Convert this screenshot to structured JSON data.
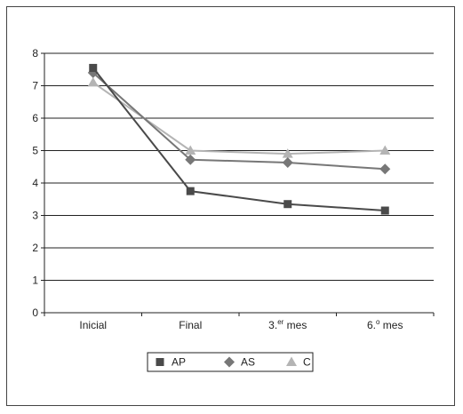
{
  "chart_data": {
    "type": "line",
    "title": "",
    "xlabel": "",
    "ylabel": "",
    "categories": [
      "Inicial",
      "Final",
      "3.er mes",
      "6.º mes"
    ],
    "category_labels": [
      {
        "base": "Inicial",
        "sup": "",
        "tail": ""
      },
      {
        "base": "Final",
        "sup": "",
        "tail": ""
      },
      {
        "base": "3.",
        "sup": "er",
        "tail": " mes"
      },
      {
        "base": "6.",
        "sup": "o",
        "tail": " mes"
      }
    ],
    "ylim": [
      0,
      8
    ],
    "yticks": [
      0,
      1,
      2,
      3,
      4,
      5,
      6,
      7,
      8
    ],
    "grid": true,
    "legend_position": "bottom",
    "series": [
      {
        "name": "AP",
        "marker": "square",
        "color": "#4a4a4a",
        "values": [
          7.55,
          3.75,
          3.35,
          3.15
        ]
      },
      {
        "name": "AS",
        "marker": "diamond",
        "color": "#777777",
        "values": [
          7.4,
          4.72,
          4.63,
          4.43
        ]
      },
      {
        "name": "C",
        "marker": "triangle",
        "color": "#b4b4b4",
        "values": [
          7.1,
          5.0,
          4.9,
          5.0
        ]
      }
    ]
  }
}
